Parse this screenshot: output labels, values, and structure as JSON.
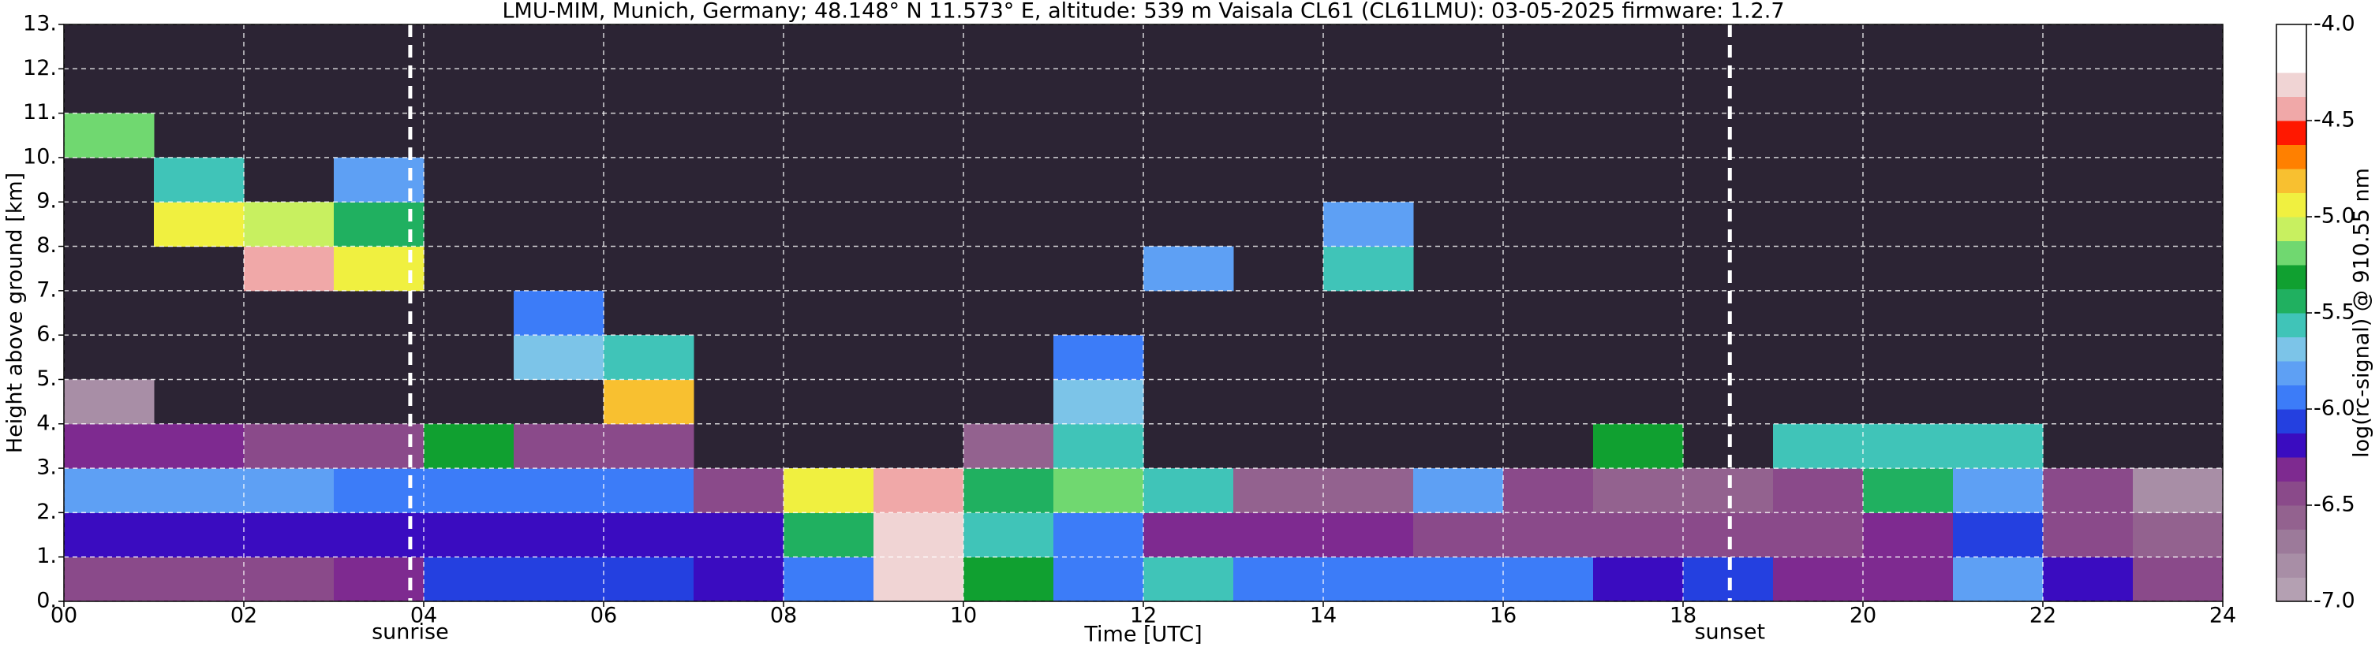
{
  "chart_data": {
    "type": "heatmap",
    "title": "LMU-MIM, Munich, Germany; 48.148° N 11.573° E, altitude: 539 m    Vaisala CL61 (CL61LMU): 03-05-2025    firmware: 1.2.7",
    "x_label": "Time [UTC]",
    "y_label": "Height above ground [km]",
    "xlim": [
      0,
      24
    ],
    "xticks": [
      {
        "value": 0,
        "label": "00"
      },
      {
        "value": 2,
        "label": "02"
      },
      {
        "value": 4,
        "label": "04"
      },
      {
        "value": 6,
        "label": "06"
      },
      {
        "value": 8,
        "label": "08"
      },
      10,
      12,
      14,
      16,
      18,
      20,
      22,
      24
    ],
    "ylim": [
      0,
      13
    ],
    "yticks": [
      {
        "value": 0,
        "label": "0."
      },
      {
        "value": 1,
        "label": "1."
      },
      {
        "value": 2,
        "label": "2."
      },
      {
        "value": 3,
        "label": "3."
      },
      {
        "value": 4,
        "label": "4."
      },
      {
        "value": 5,
        "label": "5."
      },
      {
        "value": 6,
        "label": "6."
      },
      {
        "value": 7,
        "label": "7."
      },
      {
        "value": 8,
        "label": "8."
      },
      {
        "value": 9,
        "label": "9."
      },
      {
        "value": 10,
        "label": "10."
      },
      {
        "value": 11,
        "label": "11."
      },
      {
        "value": 12,
        "label": "12."
      },
      {
        "value": 13,
        "label": "13."
      }
    ],
    "grid": true,
    "background_color": "#2c2434",
    "annotations": [
      {
        "label": "sunrise",
        "x": 3.85
      },
      {
        "label": "sunset",
        "x": 18.52
      }
    ],
    "x_bins": [
      0,
      1,
      2,
      3,
      4,
      5,
      6,
      7,
      8,
      9,
      10,
      11,
      12,
      13,
      14,
      15,
      16,
      17,
      18,
      19,
      20,
      21,
      22,
      23,
      24
    ],
    "y_bins": [
      0,
      1,
      2,
      3,
      4,
      5,
      6,
      7,
      8,
      9,
      10,
      11,
      12,
      13
    ],
    "z": [
      [
        -6.4,
        -6.4,
        -6.4,
        -6.3,
        -6.1,
        -6.1,
        -6.1,
        -6.2,
        -6.0,
        -4.3,
        -5.3,
        -5.9,
        -5.6,
        -6.0,
        -6.0,
        -6.0,
        -6.0,
        -6.2,
        -6.1,
        -6.3,
        -6.3,
        -5.8,
        -6.2,
        -6.4
      ],
      [
        -6.2,
        -6.2,
        -6.2,
        -6.2,
        -6.2,
        -6.2,
        -6.2,
        -6.2,
        -5.5,
        -4.3,
        -5.6,
        -6.0,
        -6.3,
        -6.3,
        -6.3,
        -6.4,
        -6.4,
        -6.4,
        -6.5,
        -6.5,
        -6.3,
        -6.1,
        -6.4,
        -6.6
      ],
      [
        -5.8,
        -5.8,
        -5.8,
        -5.9,
        -5.9,
        -5.9,
        -6.0,
        -6.5,
        -5.0,
        -4.4,
        -5.4,
        -5.2,
        -5.6,
        -6.6,
        -6.6,
        -5.8,
        -6.5,
        -6.6,
        -6.6,
        -6.5,
        -5.5,
        -5.8,
        -6.4,
        -6.8
      ],
      [
        -6.3,
        -6.3,
        -6.4,
        -6.5,
        -5.3,
        -6.4,
        -6.4,
        null,
        null,
        null,
        -6.6,
        -5.6,
        null,
        null,
        null,
        null,
        null,
        -5.3,
        null,
        -5.6,
        -5.6,
        -5.6,
        null,
        null
      ],
      [
        -6.8,
        null,
        null,
        null,
        null,
        null,
        -4.8,
        null,
        null,
        null,
        null,
        -5.7,
        null,
        null,
        null,
        null,
        null,
        null,
        null,
        null,
        null,
        null,
        null,
        null
      ],
      [
        null,
        null,
        null,
        null,
        null,
        -5.7,
        -5.6,
        null,
        null,
        null,
        null,
        -5.9,
        null,
        null,
        null,
        null,
        null,
        null,
        null,
        null,
        null,
        null,
        null,
        null
      ],
      [
        null,
        null,
        null,
        null,
        null,
        -5.9,
        null,
        null,
        null,
        null,
        null,
        null,
        null,
        null,
        null,
        null,
        null,
        null,
        null,
        null,
        null,
        null,
        null,
        null
      ],
      [
        null,
        null,
        -4.5,
        -5.0,
        null,
        null,
        null,
        null,
        null,
        null,
        null,
        null,
        -5.8,
        null,
        -5.6,
        null,
        null,
        null,
        null,
        null,
        null,
        null,
        null,
        null
      ],
      [
        null,
        -5.0,
        -5.1,
        -5.4,
        null,
        null,
        null,
        null,
        null,
        null,
        null,
        null,
        null,
        null,
        -5.8,
        null,
        null,
        null,
        null,
        null,
        null,
        null,
        null,
        null
      ],
      [
        null,
        -5.6,
        null,
        -5.8,
        null,
        null,
        null,
        null,
        null,
        null,
        null,
        null,
        null,
        null,
        null,
        null,
        null,
        null,
        null,
        null,
        null,
        null,
        null,
        null
      ],
      [
        -5.2,
        null,
        null,
        null,
        null,
        null,
        null,
        null,
        null,
        null,
        null,
        null,
        null,
        null,
        null,
        null,
        null,
        null,
        null,
        null,
        null,
        null,
        null,
        null
      ],
      [
        null,
        null,
        null,
        null,
        null,
        null,
        null,
        null,
        null,
        null,
        null,
        null,
        null,
        null,
        null,
        null,
        null,
        null,
        null,
        null,
        null,
        null,
        null,
        null
      ],
      [
        null,
        null,
        null,
        null,
        null,
        null,
        null,
        null,
        null,
        null,
        null,
        null,
        null,
        null,
        null,
        null,
        null,
        null,
        null,
        null,
        null,
        null,
        null,
        null
      ]
    ],
    "colorbar": {
      "label": "log(rc-signal) @ 910.55 nm",
      "clim": [
        -7,
        -4
      ],
      "ticks": [
        {
          "value": -4,
          "label": "-4.0"
        },
        {
          "value": -4.5,
          "label": "-4.5"
        },
        {
          "value": -5,
          "label": "-5.0"
        },
        {
          "value": -5.5,
          "label": "-5.5"
        },
        {
          "value": -6,
          "label": "-6.0"
        },
        {
          "value": -6.5,
          "label": "-6.5"
        },
        {
          "value": -7,
          "label": "-7.0"
        }
      ],
      "colors": [
        "#b4a0b2",
        "#a88ea6",
        "#9c7a9a",
        "#93628f",
        "#8a4a8a",
        "#7e2a90",
        "#3a0cc0",
        "#2440e0",
        "#3c7cf8",
        "#5ea0f4",
        "#7cc4e8",
        "#40c4b8",
        "#20b060",
        "#10a030",
        "#70d870",
        "#c8f060",
        "#f0f040",
        "#f8c030",
        "#ff8000",
        "#ff1800",
        "#f0a8a8",
        "#f0d4d4",
        "#ffffff",
        "#ffffff"
      ]
    }
  }
}
